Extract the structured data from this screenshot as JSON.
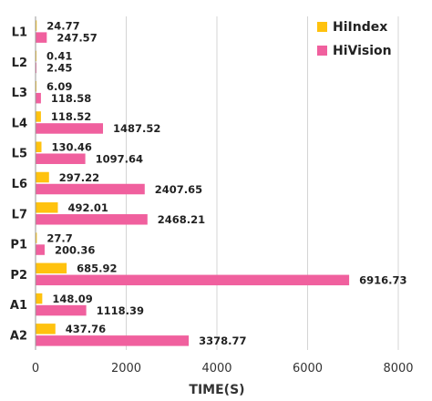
{
  "chart_data": {
    "type": "bar",
    "orientation": "horizontal",
    "categories": [
      "L1",
      "L2",
      "L3",
      "L4",
      "L5",
      "L6",
      "L7",
      "P1",
      "P2",
      "A1",
      "A2"
    ],
    "series": [
      {
        "name": "HiIndex",
        "color": "#FFC20E",
        "values": [
          24.77,
          0.41,
          6.09,
          118.52,
          130.46,
          297.22,
          492.01,
          27.7,
          685.92,
          148.09,
          437.76
        ],
        "labels": [
          "24.77",
          "0.41",
          "6.09",
          "118.52",
          "130.46",
          "297.22",
          "492.01",
          "27.7",
          "685.92",
          "148.09",
          "437.76"
        ]
      },
      {
        "name": "HiVision",
        "color": "#F0609E",
        "values": [
          247.57,
          2.45,
          118.58,
          1487.52,
          1097.64,
          2407.65,
          2468.21,
          200.36,
          6916.73,
          1118.39,
          3378.77
        ],
        "labels": [
          "247.57",
          "2.45",
          "118.58",
          "1487.52",
          "1097.64",
          "2407.65",
          "2468.21",
          "200.36",
          "6916.73",
          "1118.39",
          "3378.77"
        ]
      }
    ],
    "xlabel": "TIME(S)",
    "ylabel": "",
    "xlim": [
      0,
      8000
    ],
    "xticks": [
      "0",
      "2000",
      "4000",
      "6000",
      "8000"
    ],
    "grid": true,
    "legend_position": "top-right"
  }
}
